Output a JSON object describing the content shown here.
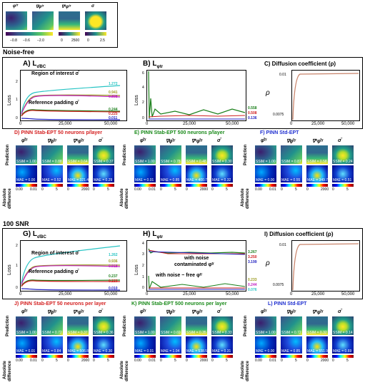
{
  "legend": {
    "titles": [
      "φᵗʳ",
      "∇φᵗʳ",
      "∇²φᵗʳ",
      "σ"
    ],
    "ticks_1": [
      "−0.8",
      "−0.6",
      "−2.0"
    ],
    "ticks_3": [
      "0",
      "2500"
    ],
    "ticks_4": [
      "0",
      "2.5"
    ]
  },
  "sections": {
    "noise_free": "Noise-free",
    "snr100": "100 SNR"
  },
  "top": {
    "A": {
      "title": "A) L",
      "title_sub": "σ̄BC",
      "ylabel": "Loss",
      "xlabel": "Iterations",
      "roi_label": "Region of interest σ̄",
      "ref_label": "Reference padding σ̄",
      "values": [
        "1.272",
        "0.941",
        "0.898",
        "0.244",
        "0.225",
        "0.011"
      ],
      "yticks": [
        "2",
        "1",
        "0"
      ],
      "xticks": [
        "0",
        "25,000",
        "50,000"
      ]
    },
    "B": {
      "title": "B) L",
      "title_sub": "φtr",
      "ylabel": "Loss",
      "xlabel": "Iterations",
      "values": [
        "0.558",
        "0.508",
        "0.136"
      ],
      "yticks": [
        "6",
        "4",
        "2",
        "0"
      ],
      "xticks": [
        "0",
        "25,000",
        "50,000"
      ]
    },
    "C": {
      "title": "C) Diffusion coefficient (ρ)",
      "ylabel": "ρ",
      "yticks": [
        "0.01",
        "0.0075"
      ],
      "xticks": [
        "0",
        "25,000",
        "50,000"
      ]
    }
  },
  "row1": {
    "D": {
      "title": "D) PINN Stab-EPT 50 neurons p/layer",
      "headers": [
        "φ̂ᵗʳ",
        "∇φ̂ᵗʳ",
        "∇²φ̂ᵗʳ",
        "σ̄"
      ],
      "ssim": [
        "SSIM = 1.00",
        "SSIM = 0.88",
        "SSIM = 0.64",
        "SSIM = 0.37"
      ],
      "mae": [
        "MAE = 0.00",
        "MAE = 0.52",
        "MAE = 321.42",
        "MAE = 0.29"
      ],
      "cbar": [
        [
          "0.00",
          "0.01"
        ],
        [
          "0",
          "5"
        ],
        [
          "0",
          "2000"
        ],
        [
          "0",
          "5"
        ]
      ]
    },
    "E": {
      "title": "E) PINN Stab-EPT 500 neurons p/layer",
      "headers": [
        "φ̂ᵗʳ",
        "∇φ̂ᵗʳ",
        "∇²φ̂ᵗʳ",
        "σ̄"
      ],
      "ssim": [
        "SSIM = 1.00",
        "SSIM = 0.78",
        "SSIM = 0.48",
        "SSIM = 0.30"
      ],
      "mae": [
        "MAE = 0.01",
        "MAE = 0.85",
        "MAE = 400.70",
        "MAE = 0.32"
      ],
      "cbar": [
        [
          "0.00",
          "0.01"
        ],
        [
          "0",
          "5"
        ],
        [
          "0",
          "2000"
        ],
        [
          "0",
          "5"
        ]
      ]
    },
    "F": {
      "title": "F) PINN Std-EPT",
      "headers": [
        "φ̂ᵗʳ",
        "∇φ̂ᵗʳ",
        "∇²φ̂ᵗʳ",
        "σ̄"
      ],
      "ssim": [
        "SSIM = 1.00",
        "SSIM = 0.87",
        "SSIM = 0.58",
        "SSIM = 0.24"
      ],
      "mae": [
        "MAE = 0.00",
        "MAE = 0.55",
        "MAE = 349.79",
        "MAE = 0.51"
      ],
      "cbar": [
        [
          "0.00",
          "0.01"
        ],
        [
          "0",
          "5"
        ],
        [
          "0",
          "2000"
        ],
        [
          "0",
          "5"
        ]
      ]
    }
  },
  "mid": {
    "G": {
      "title": "G) L",
      "title_sub": "σ̄BC",
      "ylabel": "Loss",
      "xlabel": "Iterations",
      "roi_label": "Region of interest σ̄",
      "ref_label": "Reference padding σ̄",
      "values": [
        "1.262",
        "0.936",
        "0.918",
        "0.237",
        "0.223",
        "0.010"
      ],
      "yticks": [
        "2",
        "1",
        "0"
      ],
      "xticks": [
        "0",
        "25,000",
        "50,000"
      ]
    },
    "H": {
      "title": "H) L",
      "title_sub": "φtr",
      "ylabel": "Loss",
      "xlabel": "Iterations",
      "noisy_label_1": "with noise",
      "noisy_label_2": "contaminated φᵗʳ",
      "clean_label": "with noise − free φᵗʳ",
      "values_top": [
        "3.267",
        "3.250",
        "3.199"
      ],
      "values_bottom": [
        "0.233",
        "0.244",
        "0.076"
      ],
      "yticks": [
        "4",
        "3",
        "2",
        "1",
        "0"
      ],
      "xticks": [
        "0",
        "25,000",
        "50,000"
      ]
    },
    "I": {
      "title": "I) Diffusion coefficient (ρ)",
      "ylabel": "ρ",
      "yticks": [
        "0.01",
        "0.0075"
      ],
      "xticks": [
        "0",
        "25,000",
        "50,000"
      ]
    }
  },
  "row2": {
    "J": {
      "title": "J) PINN Stab-EPT 50 neurons per layer",
      "headers": [
        "φ̂ᵗʳ",
        "∇φ̂ᵗʳ",
        "∇²φ̂ᵗʳ",
        "σ̄"
      ],
      "ssim": [
        "SSIM = 1.00",
        "SSIM = 0.72",
        "SSIM = 0.37",
        "SSIM = 0.36"
      ],
      "mae": [
        "MAE = 0.01",
        "MAE = 0.84",
        "MAE = 506.80",
        "MAE = 0.30"
      ],
      "cbar": [
        [
          "0.00",
          "0.01"
        ],
        [
          "0",
          "5"
        ],
        [
          "0",
          "2000"
        ],
        [
          "0",
          "5"
        ]
      ]
    },
    "K": {
      "title": "K) PINN Stab-EPT 500 neurons per layer",
      "headers": [
        "φ̂ᵗʳ",
        "∇φ̂ᵗʳ",
        "∇²φ̂ᵗʳ",
        "σ̄"
      ],
      "ssim": [
        "SSIM = 1.00",
        "SSIM = 0.69",
        "SSIM = 0.35",
        "SSIM = 0.33"
      ],
      "mae": [
        "MAE = 0.01",
        "MAE = 1.04",
        "MAE = 538.56",
        "MAE = 0.31"
      ],
      "cbar": [
        [
          "0.00",
          "0.01"
        ],
        [
          "0",
          "5"
        ],
        [
          "0",
          "2000"
        ],
        [
          "0",
          "5"
        ]
      ]
    },
    "L": {
      "title": "L) PINN Std-EPT",
      "headers": [
        "φ̂ᵗʳ",
        "∇φ̂ᵗʳ",
        "∇²φ̂ᵗʳ",
        "σ̄"
      ],
      "ssim": [
        "SSIM = 1.00",
        "SSIM = 0.72",
        "SSIM = 0.32",
        "SSIM = 0.14"
      ],
      "mae": [
        "MAE = 0.00",
        "MAE = 0.85",
        "MAE = 551.90",
        "MAE = 0.69"
      ],
      "cbar": [
        [
          "0.00",
          "0.01"
        ],
        [
          "0",
          "5"
        ],
        [
          "0",
          "2000"
        ],
        [
          "0",
          "5"
        ]
      ]
    }
  },
  "row_labels": {
    "prediction": "Prediction",
    "abs_diff_1": "Absolute",
    "abs_diff_2": "difference"
  },
  "colors": {
    "cyan": "#27c4c4",
    "olive": "#9a9a1e",
    "magenta": "#c020c0",
    "green": "#1a7f1a",
    "red": "#d02020",
    "blue": "#2020c0",
    "orange_line": "#c8836a",
    "title_red": "#d42020",
    "title_green": "#1a8a1a",
    "title_blue": "#2030d0"
  }
}
